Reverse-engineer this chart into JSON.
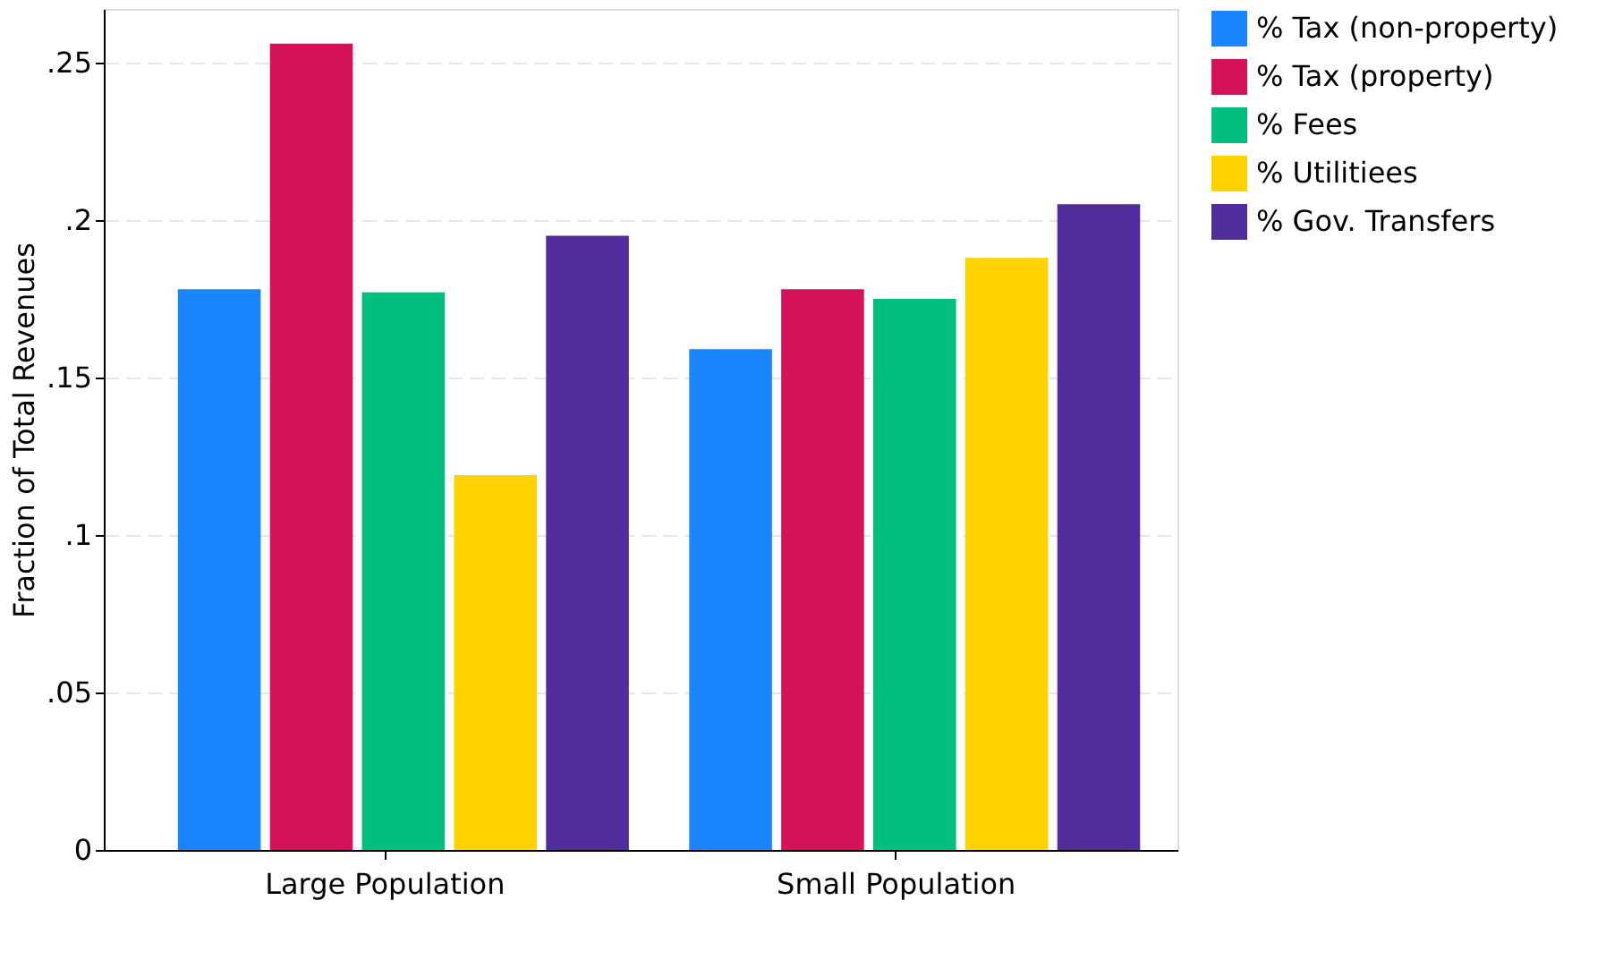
{
  "chart_data": {
    "type": "bar",
    "ylabel": "Fraction of Total Revenues",
    "categories": [
      "Large Population",
      "Small Population"
    ],
    "series": [
      {
        "name": "% Tax (non-property)",
        "color": "#1a85ff",
        "values": [
          0.178,
          0.159
        ]
      },
      {
        "name": "% Tax (property)",
        "color": "#d41159",
        "values": [
          0.256,
          0.178
        ]
      },
      {
        "name": "% Fees",
        "color": "#00bf7f",
        "values": [
          0.177,
          0.175
        ]
      },
      {
        "name": "% Utilitiees",
        "color": "#ffd200",
        "values": [
          0.119,
          0.188
        ]
      },
      {
        "name": "% Gov. Transfers",
        "color": "#512d9b",
        "values": [
          0.195,
          0.205
        ]
      }
    ],
    "ylim": [
      0,
      0.267
    ],
    "yticks": [
      0,
      {
        "value": 0.05,
        "label": ".05"
      },
      {
        "value": 0.1,
        "label": ".1"
      },
      {
        "value": 0.15,
        "label": ".15"
      },
      {
        "value": 0.2,
        "label": ".2"
      },
      {
        "value": 0.25,
        "label": ".25"
      }
    ],
    "grid": "y",
    "legend": "right"
  }
}
